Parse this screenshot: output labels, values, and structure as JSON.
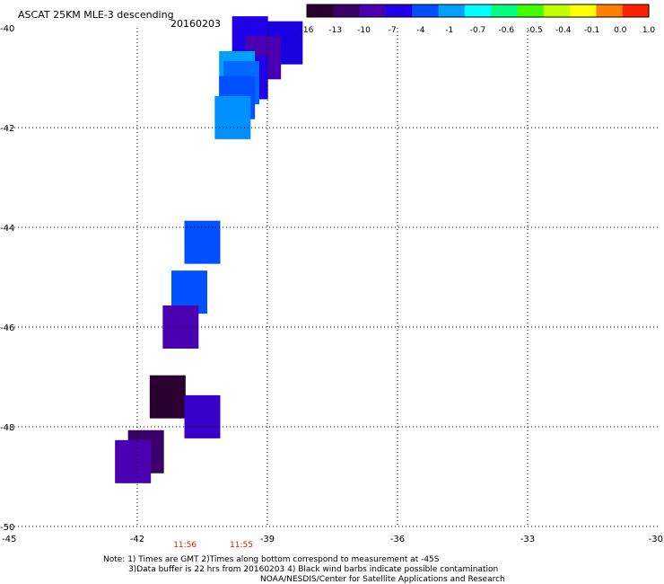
{
  "chart_data": {
    "type": "heatmap",
    "title": "ASCAT 25KM MLE-3 descending",
    "date": "20160203",
    "xlim": [
      -45,
      -30
    ],
    "ylim": [
      -50,
      -40
    ],
    "x_ticks": [
      "-45",
      "-42",
      "-39",
      "-36",
      "-33",
      "-30"
    ],
    "x_tick_values": [
      -45,
      -42,
      -39,
      -36,
      -33,
      -30
    ],
    "y_ticks": [
      "-40",
      "-42",
      "-44",
      "-46",
      "-48",
      "-50"
    ],
    "y_tick_values": [
      -40,
      -42,
      -44,
      -46,
      -48,
      -50
    ],
    "grid": true,
    "colorbar": {
      "labels": [
        "-16",
        "-13",
        "-10",
        "-7",
        "-4",
        "-1",
        "-0.7",
        "-0.6",
        "-0.5",
        "-0.4",
        "-0.1",
        "0.0",
        "1.0"
      ],
      "colors": [
        "#2a0030",
        "#3a006a",
        "#4a00b0",
        "#2000e8",
        "#0050ff",
        "#00a0ff",
        "#00ffff",
        "#00ff80",
        "#40ff00",
        "#c0ff00",
        "#ffff00",
        "#ff8000",
        "#ff2000"
      ]
    },
    "times": [
      {
        "label": "11:56",
        "lon": -40.9
      },
      {
        "label": "11:55",
        "lon": -39.6
      }
    ],
    "time_color": "#cc2200",
    "cells": [
      {
        "lon": -39.4,
        "lat": -40.2,
        "value": -7,
        "color": "#2000e8"
      },
      {
        "lon": -38.6,
        "lat": -40.3,
        "value": -7,
        "color": "#1800e0"
      },
      {
        "lon": -39.1,
        "lat": -40.6,
        "value": -10,
        "color": "#4a00b0"
      },
      {
        "lon": -39.4,
        "lat": -41.0,
        "value": -7,
        "color": "#2000e8"
      },
      {
        "lon": -39.7,
        "lat": -40.9,
        "value": -1,
        "color": "#00a0ff"
      },
      {
        "lon": -39.6,
        "lat": -41.1,
        "value": -4,
        "color": "#0068ff"
      },
      {
        "lon": -39.7,
        "lat": -41.4,
        "value": -4,
        "color": "#0050ff"
      },
      {
        "lon": -39.8,
        "lat": -41.8,
        "value": -1,
        "color": "#0090ff"
      },
      {
        "lon": -40.5,
        "lat": -44.3,
        "value": -4,
        "color": "#0050ff"
      },
      {
        "lon": -40.8,
        "lat": -45.3,
        "value": -4,
        "color": "#0050ff"
      },
      {
        "lon": -41.0,
        "lat": -46.0,
        "value": -10,
        "color": "#4a00b0"
      },
      {
        "lon": -41.3,
        "lat": -47.4,
        "value": -16,
        "color": "#2a0030"
      },
      {
        "lon": -40.5,
        "lat": -47.8,
        "value": -10,
        "color": "#3800c8"
      },
      {
        "lon": -41.8,
        "lat": -48.5,
        "value": -13,
        "color": "#3a006a"
      },
      {
        "lon": -42.1,
        "lat": -48.7,
        "value": -10,
        "color": "#4a00b0"
      }
    ],
    "notes": [
      "Note: 1) Times are GMT 2)Times along bottom correspond to measurement at -45S",
      "3)Data buffer is 22 hrs from 20160203 4) Black wind barbs indicate possible contamination",
      "NOAA/NESDIS/Center for Satellite Applications and Research"
    ]
  }
}
